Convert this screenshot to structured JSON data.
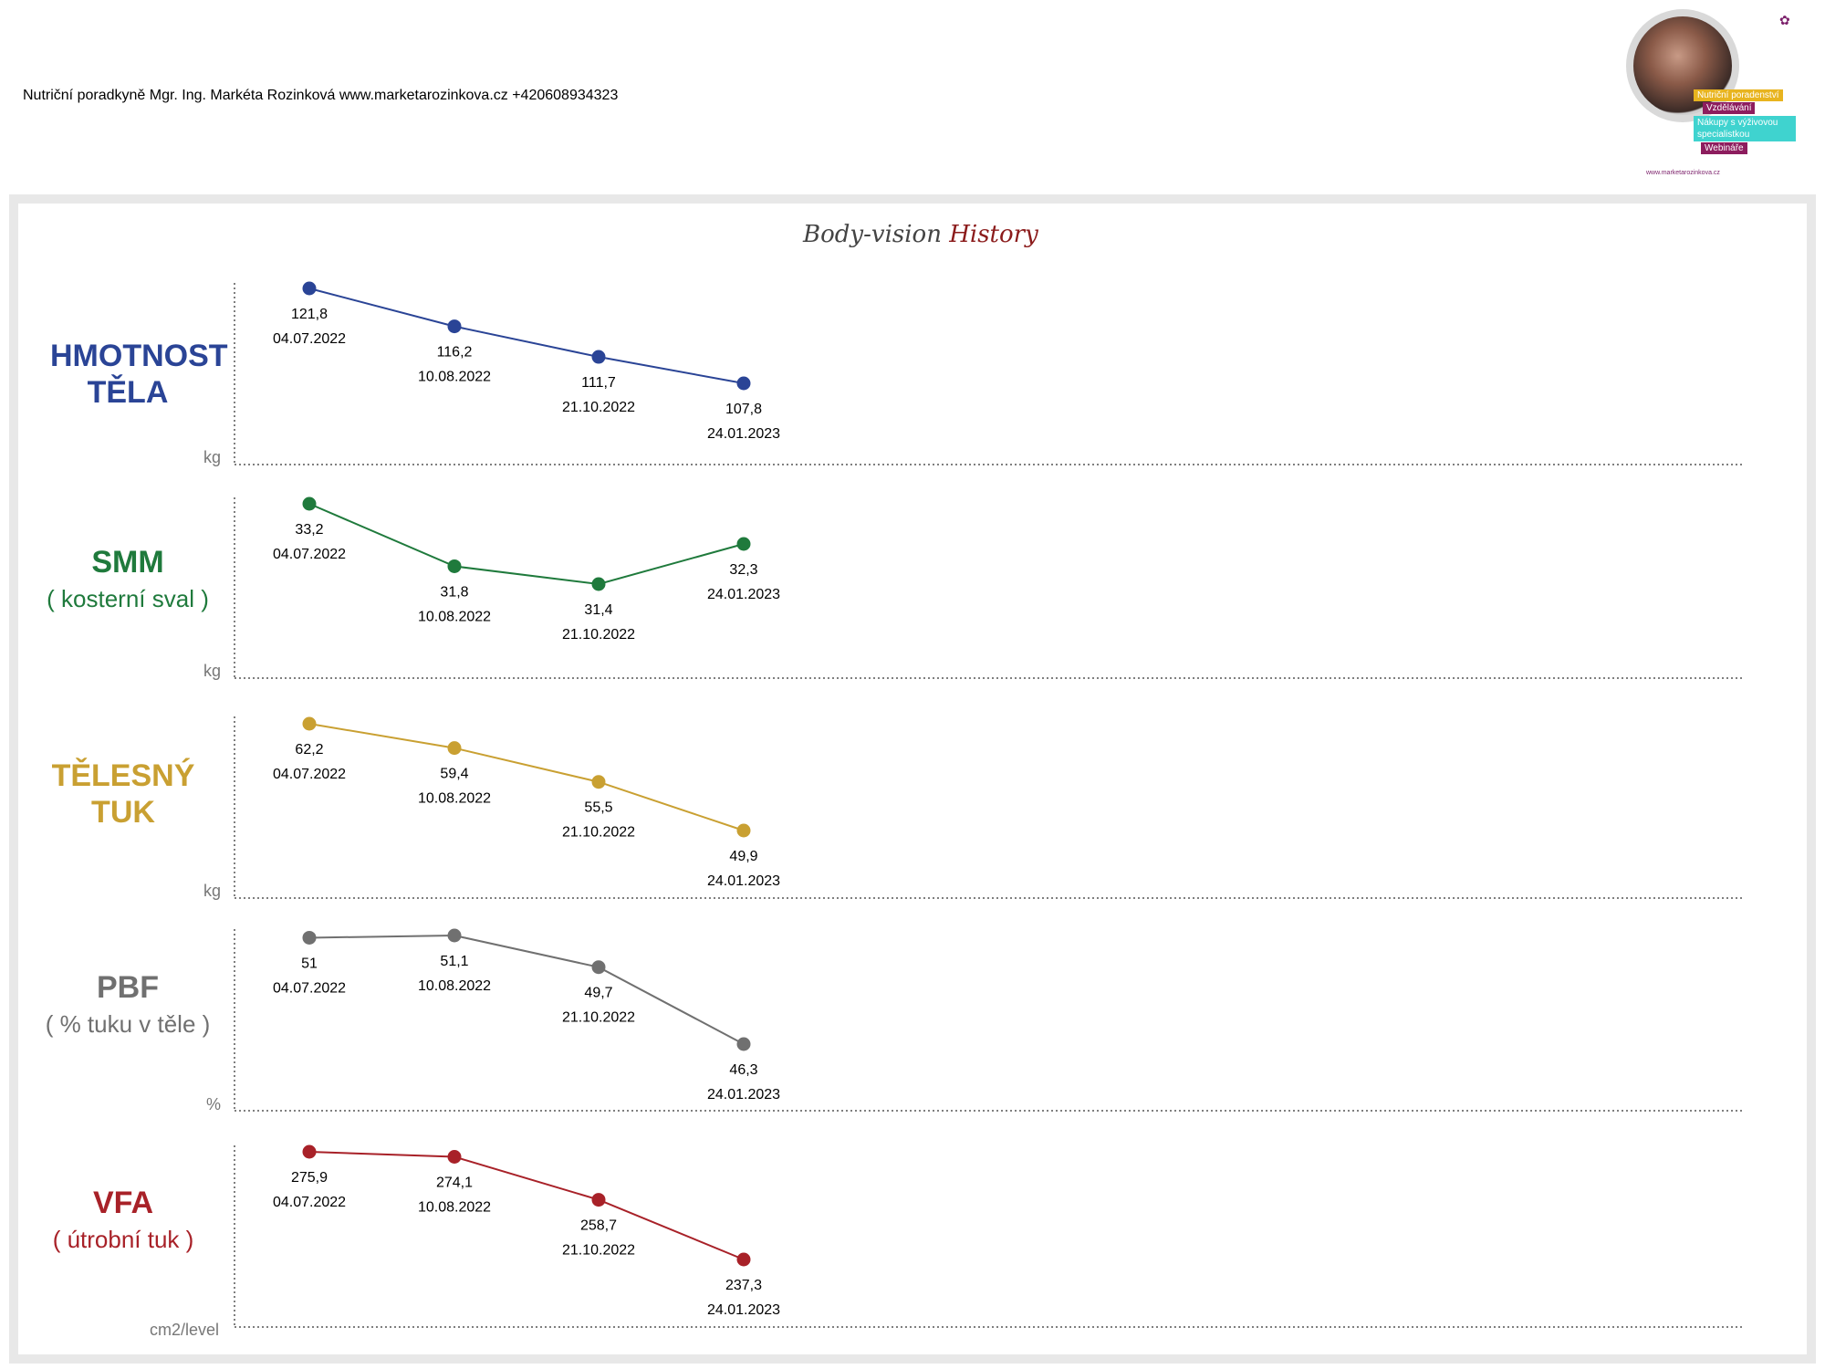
{
  "header": {
    "contact": "Nutriční poradkyně Mgr. Ing. Markéta Rozinková www.marketarozinkova.cz +420608934323"
  },
  "logo": {
    "tags": [
      "Nutriční poradenství",
      "Vzdělávání",
      "Nákupy s výživovou specialistkou",
      "Webináře"
    ],
    "url": "www.marketarozinkova.cz"
  },
  "title": {
    "part1": "Body-vision",
    "part2": "History"
  },
  "colors": {
    "weight": "#2a4496",
    "smm": "#1f7a3c",
    "fat": "#c9a032",
    "pbf": "#707070",
    "vfa": "#a82128"
  },
  "chart_data": [
    {
      "type": "line",
      "title": "HMOTNOST TĚLA",
      "subtitle": "",
      "ylabel": "kg",
      "x": [
        "04.07.2022",
        "10.08.2022",
        "21.10.2022",
        "24.01.2023"
      ],
      "labels": [
        "121,8",
        "116,2",
        "111,7",
        "107,8"
      ],
      "values": [
        121.8,
        116.2,
        111.7,
        107.8
      ],
      "color": "#2a4496"
    },
    {
      "type": "line",
      "title": "SMM",
      "subtitle": "( kosterní sval )",
      "ylabel": "kg",
      "x": [
        "04.07.2022",
        "10.08.2022",
        "21.10.2022",
        "24.01.2023"
      ],
      "labels": [
        "33,2",
        "31,8",
        "31,4",
        "32,3"
      ],
      "values": [
        33.2,
        31.8,
        31.4,
        32.3
      ],
      "color": "#1f7a3c"
    },
    {
      "type": "line",
      "title": "TĚLESNÝ TUK",
      "subtitle": "",
      "ylabel": "kg",
      "x": [
        "04.07.2022",
        "10.08.2022",
        "21.10.2022",
        "24.01.2023"
      ],
      "labels": [
        "62,2",
        "59,4",
        "55,5",
        "49,9"
      ],
      "values": [
        62.2,
        59.4,
        55.5,
        49.9
      ],
      "color": "#c9a032"
    },
    {
      "type": "line",
      "title": "PBF",
      "subtitle": "( % tuku v těle )",
      "ylabel": "%",
      "x": [
        "04.07.2022",
        "10.08.2022",
        "21.10.2022",
        "24.01.2023"
      ],
      "labels": [
        "51",
        "51,1",
        "49,7",
        "46,3"
      ],
      "values": [
        51,
        51.1,
        49.7,
        46.3
      ],
      "color": "#707070"
    },
    {
      "type": "line",
      "title": "VFA",
      "subtitle": "( útrobní tuk )",
      "ylabel": "cm2/level",
      "x": [
        "04.07.2022",
        "10.08.2022",
        "21.10.2022",
        "24.01.2023"
      ],
      "labels": [
        "275,9",
        "274,1",
        "258,7",
        "237,3"
      ],
      "values": [
        275.9,
        274.1,
        258.7,
        237.3
      ],
      "color": "#a82128"
    }
  ]
}
